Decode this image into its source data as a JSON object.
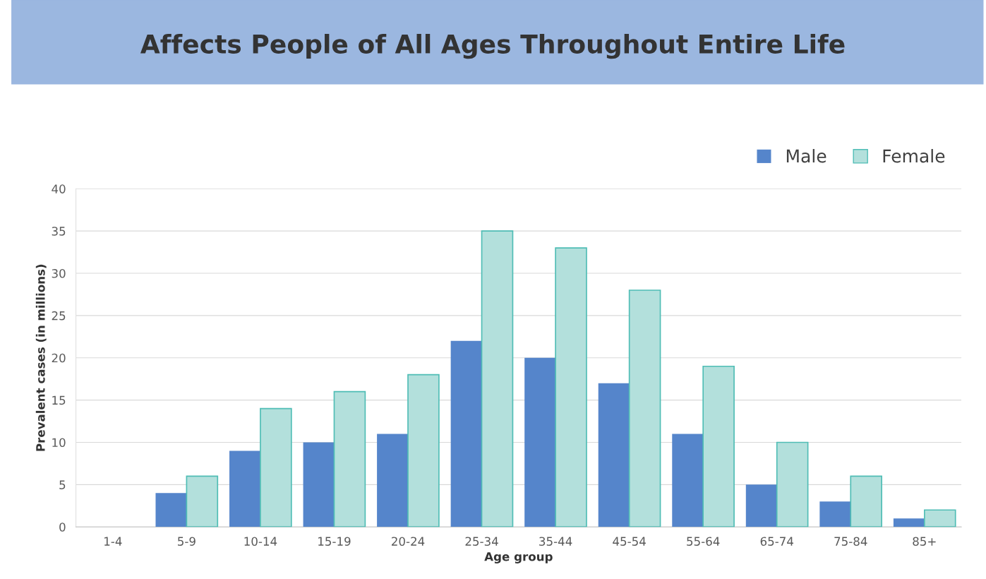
{
  "chart_data": {
    "type": "bar",
    "title": "Affects People of All Ages Throughout Entire Life",
    "xlabel": "Age group",
    "ylabel": "Prevalent cases (in millions)",
    "categories": [
      "1-4",
      "5-9",
      "10-14",
      "15-19",
      "20-24",
      "25-34",
      "35-44",
      "45-54",
      "55-64",
      "65-74",
      "75-84",
      "85+"
    ],
    "series": [
      {
        "name": "Male",
        "color": "#5585cb",
        "values": [
          null,
          4,
          9,
          10,
          11,
          22,
          20,
          17,
          11,
          5,
          3,
          1
        ]
      },
      {
        "name": "Female",
        "color": "#b3e0dc",
        "values": [
          null,
          6,
          14,
          16,
          18,
          35,
          33,
          28,
          19,
          10,
          6,
          2
        ]
      }
    ],
    "ylim": [
      0,
      40
    ],
    "yticks": [
      0,
      5,
      10,
      15,
      20,
      25,
      30,
      35,
      40
    ],
    "grid": "y",
    "legend": "top right"
  }
}
